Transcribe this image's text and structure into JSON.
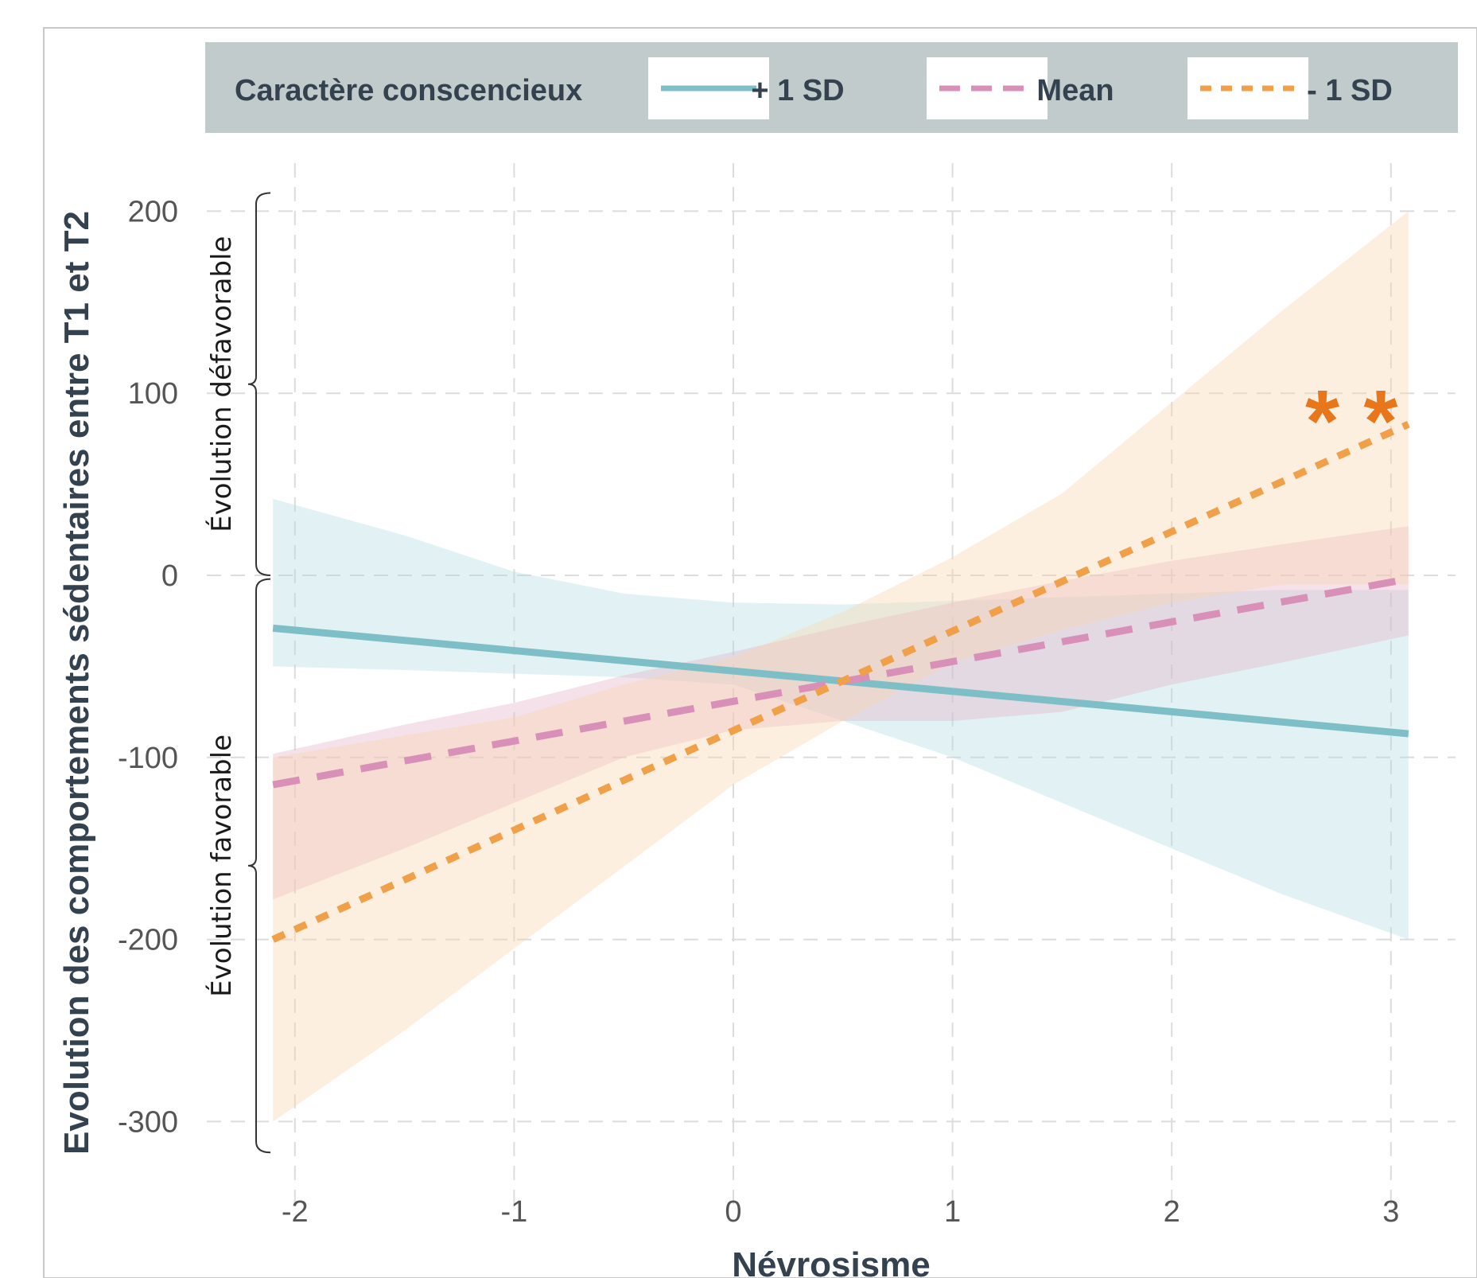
{
  "chart_data": {
    "type": "line",
    "title": "",
    "xlabel": "Névrosisme",
    "ylabel": "Evolution des comportements sédentaires entre T1 et T2",
    "xlim": [
      -2.15,
      3.2
    ],
    "ylim": [
      -340,
      215
    ],
    "x_ticks": [
      -2,
      -1,
      0,
      1,
      2,
      3
    ],
    "x_tick_labels": [
      "-2",
      "-1",
      "0",
      "1",
      "2",
      "3"
    ],
    "y_ticks": [
      200,
      100,
      0,
      -100,
      -200,
      -300
    ],
    "y_tick_labels": [
      "200",
      "100",
      "0",
      "-100",
      "-200",
      "-300"
    ],
    "grid": true,
    "legend": {
      "title": "Caractère conscencieux",
      "placement": "top",
      "background": "#c1cbcb"
    },
    "series": [
      {
        "name": "+ 1 SD",
        "color": "#7ebfc7",
        "dash": "solid",
        "band_color": "#b4dce2",
        "x": [
          -2.1,
          3.08
        ],
        "y": [
          -29,
          -87
        ],
        "band": {
          "x": [
            -2.1,
            -1.5,
            -1,
            -0.5,
            0,
            0.5,
            1,
            1.5,
            2,
            2.5,
            3.08
          ],
          "upper": [
            42,
            22,
            2,
            -10,
            -15,
            -16,
            -14,
            -12,
            -10,
            -8,
            -8
          ],
          "lower": [
            -50,
            -52,
            -54,
            -56,
            -60,
            -80,
            -100,
            -125,
            -150,
            -175,
            -200
          ]
        }
      },
      {
        "name": "Mean",
        "color": "#d88fb8",
        "dash": "long",
        "band_color": "#e4b0c8",
        "x": [
          -2.1,
          3.08
        ],
        "y": [
          -115,
          -2
        ],
        "band": {
          "x": [
            -2.1,
            -1.5,
            -1,
            -0.5,
            0,
            0.5,
            1,
            1.5,
            2,
            2.5,
            3.08
          ],
          "upper": [
            -98,
            -82,
            -70,
            -55,
            -42,
            -28,
            -15,
            -3,
            8,
            17,
            27
          ],
          "lower": [
            -178,
            -150,
            -125,
            -100,
            -85,
            -80,
            -80,
            -75,
            -60,
            -48,
            -33
          ]
        }
      },
      {
        "name": "- 1 SD",
        "color": "#f0a048",
        "dash": "short",
        "band_color": "#fbd5ad",
        "x": [
          -2.1,
          3.08
        ],
        "y": [
          -200,
          83
        ],
        "band": {
          "x": [
            -2.1,
            -1.5,
            -1,
            -0.5,
            0,
            0.5,
            1,
            1.5,
            2,
            2.5,
            3.08
          ],
          "upper": [
            -100,
            -88,
            -78,
            -60,
            -45,
            -20,
            10,
            45,
            95,
            145,
            200
          ],
          "lower": [
            -300,
            -250,
            -205,
            -160,
            -115,
            -80,
            -48,
            -30,
            -15,
            -5,
            -5
          ]
        }
      }
    ],
    "annotations": [
      {
        "text": "Évolution défavorable",
        "from": 0,
        "to": 210
      },
      {
        "text": "Évolution favorable",
        "from": -317,
        "to": -2
      },
      {
        "text": "* *",
        "x": 2.82,
        "y": 90,
        "color": "#e8761a"
      }
    ]
  }
}
